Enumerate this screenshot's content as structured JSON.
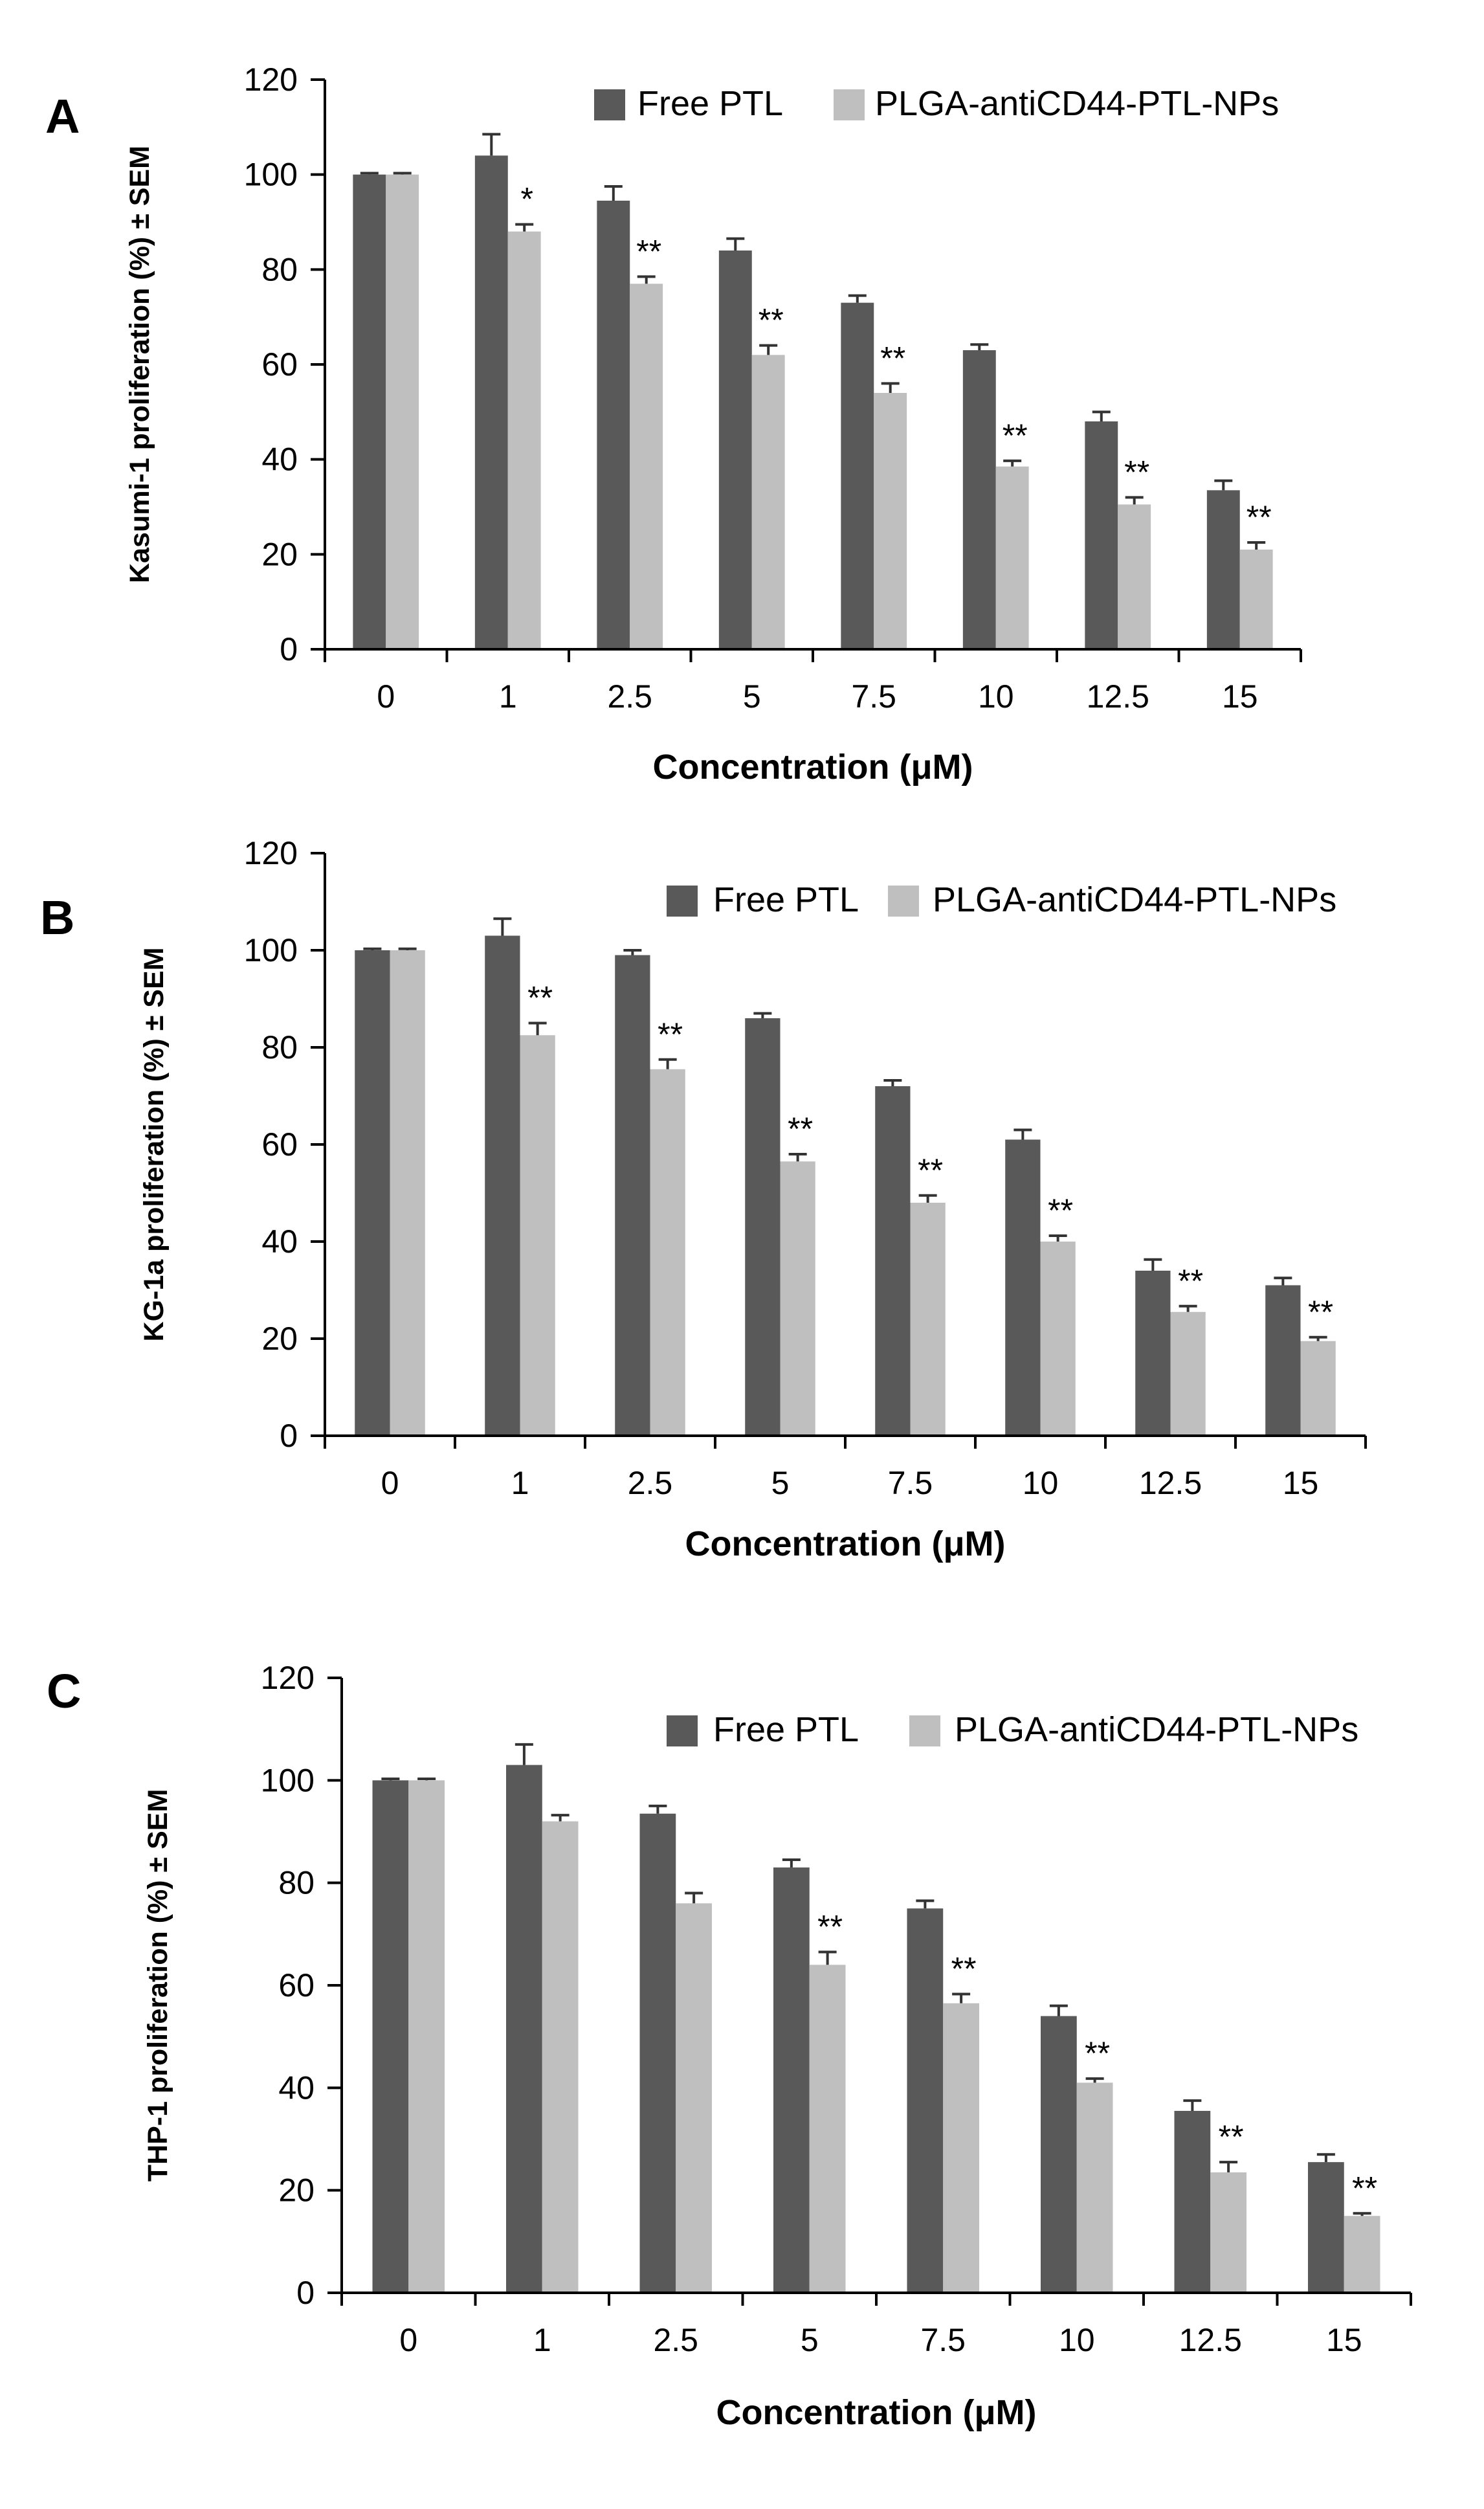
{
  "colors": {
    "free_ptl": "#595959",
    "nps": "#bfbfbf",
    "axis": "#000000"
  },
  "chart_data": [
    {
      "type": "bar",
      "panel": "A",
      "title": "",
      "xlabel": "Concentration (μM)",
      "ylabel": "Kasumi-1 proliferation (%) ± SEM",
      "ylim": [
        0,
        120
      ],
      "yticks": [
        "0",
        "20",
        "40",
        "60",
        "80",
        "100",
        "120"
      ],
      "categories": [
        "0",
        "1",
        "2.5",
        "5",
        "7.5",
        "10",
        "12.5",
        "15"
      ],
      "legend_position": "top-right",
      "series": [
        {
          "name": "Free PTL",
          "values": [
            100,
            104,
            94.5,
            84,
            73,
            63,
            48,
            33.5
          ],
          "errors": [
            0.3,
            4.5,
            3,
            2.5,
            1.5,
            1.2,
            2,
            2
          ]
        },
        {
          "name": "PLGA-antiCD44-PTL-NPs",
          "values": [
            100,
            88,
            77,
            62,
            54,
            38.5,
            30.5,
            21
          ],
          "errors": [
            0.3,
            1.5,
            1.5,
            2,
            2,
            1.2,
            1.5,
            1.5
          ]
        }
      ],
      "significance": [
        "",
        "*",
        "**",
        "**",
        "**",
        "**",
        "**",
        "**"
      ]
    },
    {
      "type": "bar",
      "panel": "B",
      "title": "",
      "xlabel": "Concentration (μM)",
      "ylabel": "KG-1a proliferation (%) ± SEM",
      "ylim": [
        0,
        120
      ],
      "yticks": [
        "0",
        "20",
        "40",
        "60",
        "80",
        "100",
        "120"
      ],
      "categories": [
        "0",
        "1",
        "2.5",
        "5",
        "7.5",
        "10",
        "12.5",
        "15"
      ],
      "legend_position": "top-right",
      "series": [
        {
          "name": "Free PTL",
          "values": [
            100,
            103,
            99,
            86,
            72,
            61,
            34,
            31
          ],
          "errors": [
            0.3,
            3.5,
            1,
            1,
            1.2,
            2,
            2.3,
            1.5
          ]
        },
        {
          "name": "PLGA-antiCD44-PTL-NPs",
          "values": [
            100,
            82.5,
            75.5,
            56.5,
            48,
            40,
            25.5,
            19.5
          ],
          "errors": [
            0.3,
            2.5,
            2,
            1.5,
            1.5,
            1.2,
            1.2,
            0.8
          ]
        }
      ],
      "significance": [
        "",
        "**",
        "**",
        "**",
        "**",
        "**",
        "**",
        "**"
      ]
    },
    {
      "type": "bar",
      "panel": "C",
      "title": "",
      "xlabel": "Concentration (μM)",
      "ylabel": "THP-1 proliferation (%) ± SEM",
      "ylim": [
        0,
        120
      ],
      "yticks": [
        "0",
        "20",
        "40",
        "60",
        "80",
        "100",
        "120"
      ],
      "categories": [
        "0",
        "1",
        "2.5",
        "5",
        "7.5",
        "10",
        "12.5",
        "15"
      ],
      "legend_position": "top-right",
      "series": [
        {
          "name": "Free PTL",
          "values": [
            100,
            103,
            93.5,
            83,
            75,
            54,
            35.5,
            25.5
          ],
          "errors": [
            0.3,
            4,
            1.5,
            1.5,
            1.5,
            2,
            2,
            1.5
          ]
        },
        {
          "name": "PLGA-antiCD44-PTL-NPs",
          "values": [
            100,
            92,
            76,
            64,
            56.5,
            41,
            23.5,
            15
          ],
          "errors": [
            0.3,
            1.2,
            2,
            2.5,
            1.8,
            0.8,
            2,
            0.5
          ]
        }
      ],
      "significance": [
        "",
        "",
        "",
        "**",
        "**",
        "**",
        "**",
        "**"
      ]
    }
  ]
}
